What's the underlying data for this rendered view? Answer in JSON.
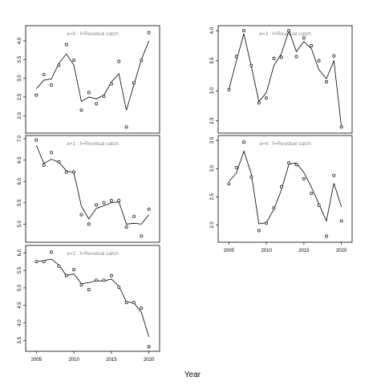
{
  "figure": {
    "xlabel": "Year"
  },
  "chart_data": [
    {
      "type": "line",
      "label": "a=0  :  f=Residual catch",
      "x": [
        2005,
        2006,
        2007,
        2008,
        2009,
        2010,
        2011,
        2012,
        2013,
        2014,
        2015,
        2016,
        2017,
        2018,
        2019,
        2020
      ],
      "series": [
        {
          "role": "observed-points",
          "values": [
            2.55,
            3.1,
            2.82,
            3.35,
            3.9,
            3.48,
            2.15,
            2.62,
            2.32,
            2.52,
            2.85,
            3.45,
            1.7,
            2.88,
            3.48,
            4.22
          ]
        },
        {
          "role": "fitted-line",
          "values": [
            2.72,
            2.95,
            2.98,
            3.4,
            3.65,
            3.35,
            2.38,
            2.5,
            2.45,
            2.55,
            2.9,
            3.12,
            2.15,
            2.82,
            3.5,
            4.0
          ]
        }
      ],
      "yticks": [
        2.0,
        2.5,
        3.0,
        3.5,
        4.0
      ],
      "xticks": [],
      "xlim": [
        2004,
        2021
      ],
      "ylim": [
        1.62,
        4.32
      ]
    },
    {
      "type": "line",
      "label": "a=1  :  f=Residual catch",
      "x": [
        2005,
        2006,
        2007,
        2008,
        2009,
        2010,
        2011,
        2012,
        2013,
        2014,
        2015,
        2016,
        2017,
        2018,
        2019,
        2020
      ],
      "series": [
        {
          "role": "observed-points",
          "values": [
            6.97,
            6.38,
            6.68,
            6.46,
            6.22,
            6.22,
            5.22,
            5.0,
            5.45,
            5.5,
            5.55,
            5.55,
            4.93,
            5.18,
            4.72,
            5.35
          ]
        },
        {
          "role": "fitted-line",
          "values": [
            6.85,
            6.42,
            6.52,
            6.45,
            6.25,
            6.2,
            5.42,
            5.12,
            5.37,
            5.43,
            5.5,
            5.52,
            5.0,
            5.02,
            5.0,
            5.22
          ]
        }
      ],
      "yticks": [
        5.0,
        5.5,
        6.0,
        6.5,
        7.0
      ],
      "xticks": [],
      "xlim": [
        2004,
        2021
      ],
      "ylim": [
        4.65,
        7.0
      ]
    },
    {
      "type": "line",
      "label": "a=2  :  f=Residual catch",
      "x": [
        2005,
        2006,
        2007,
        2008,
        2009,
        2010,
        2011,
        2012,
        2013,
        2014,
        2015,
        2016,
        2017,
        2018,
        2019,
        2020
      ],
      "series": [
        {
          "role": "observed-points",
          "values": [
            5.75,
            5.75,
            6.02,
            5.62,
            5.35,
            5.52,
            5.08,
            4.95,
            5.22,
            5.22,
            5.35,
            5.02,
            4.58,
            4.58,
            4.42,
            3.32
          ]
        },
        {
          "role": "fitted-line",
          "values": [
            5.75,
            5.78,
            5.82,
            5.65,
            5.35,
            5.4,
            5.12,
            5.15,
            5.2,
            5.2,
            5.25,
            5.05,
            4.6,
            4.57,
            4.3,
            3.6
          ]
        }
      ],
      "yticks": [
        3.5,
        4.0,
        4.5,
        5.0,
        5.5,
        6.0
      ],
      "xticks": [
        2005,
        2010,
        2015,
        2020
      ],
      "xlim": [
        2004,
        2021
      ],
      "ylim": [
        3.28,
        6.12
      ]
    },
    {
      "type": "line",
      "label": "a=3  :  f=Residual catch",
      "x": [
        2005,
        2006,
        2007,
        2008,
        2009,
        2010,
        2011,
        2012,
        2013,
        2014,
        2015,
        2016,
        2017,
        2018,
        2019,
        2020
      ],
      "series": [
        {
          "role": "observed-points",
          "values": [
            3.02,
            3.57,
            4.0,
            3.42,
            2.8,
            2.88,
            3.54,
            3.56,
            4.0,
            3.57,
            3.88,
            3.75,
            3.5,
            3.15,
            3.58,
            2.4
          ]
        },
        {
          "role": "fitted-line",
          "values": [
            3.02,
            3.5,
            3.95,
            3.4,
            2.82,
            2.97,
            3.42,
            3.62,
            4.0,
            3.65,
            3.82,
            3.7,
            3.35,
            3.2,
            3.5,
            2.4
          ]
        }
      ],
      "yticks": [
        2.5,
        3.0,
        3.5,
        4.0
      ],
      "xticks": [],
      "xlim": [
        2004,
        2021
      ],
      "ylim": [
        2.35,
        4.03
      ]
    },
    {
      "type": "line",
      "label": "a=4  :  f=Residual catch",
      "x": [
        2005,
        2006,
        2007,
        2008,
        2009,
        2010,
        2011,
        2012,
        2013,
        2014,
        2015,
        2016,
        2017,
        2018,
        2019,
        2020
      ],
      "series": [
        {
          "role": "observed-points",
          "values": [
            2.73,
            3.02,
            3.47,
            2.85,
            1.9,
            2.03,
            2.3,
            2.68,
            3.1,
            3.07,
            2.82,
            2.56,
            2.35,
            1.8,
            2.88,
            2.07
          ]
        },
        {
          "role": "fitted-line",
          "values": [
            2.77,
            2.92,
            3.31,
            2.9,
            2.02,
            2.04,
            2.28,
            2.62,
            3.08,
            3.1,
            2.93,
            2.67,
            2.37,
            2.07,
            2.74,
            2.32
          ]
        }
      ],
      "yticks": [
        2.0,
        2.5,
        3.0,
        3.5
      ],
      "xticks": [
        2005,
        2010,
        2015,
        2020
      ],
      "xlim": [
        2004,
        2021
      ],
      "ylim": [
        1.75,
        3.53
      ]
    }
  ]
}
